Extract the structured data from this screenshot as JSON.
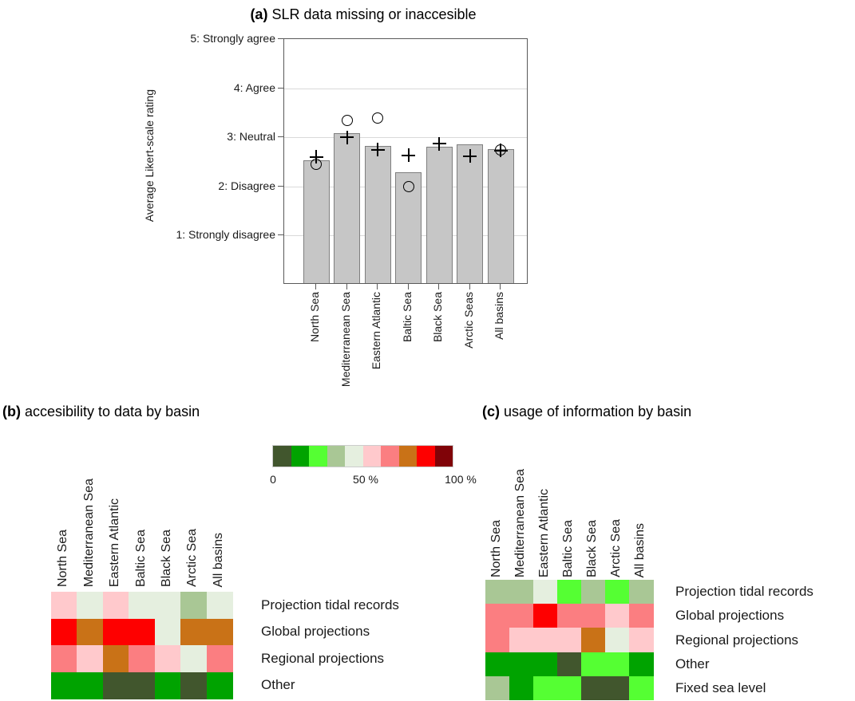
{
  "panel_a": {
    "title_prefix": "(a)",
    "title_text": " SLR data missing or inaccesible",
    "ylabel": "Average Likert-scale rating"
  },
  "panel_b": {
    "title_prefix": "(b)",
    "title_text": " accesibility to data by basin"
  },
  "panel_c": {
    "title_prefix": "(c)",
    "title_text": " usage of information by basin"
  },
  "colorbar": {
    "colors": [
      "#41562D",
      "#00A300",
      "#55FF33",
      "#A9C795",
      "#E5EFDF",
      "#FFC9CC",
      "#FB7E81",
      "#C97217",
      "#FE0000",
      "#800308"
    ],
    "tick_labels": [
      "0",
      "50 %",
      "100 %"
    ]
  },
  "chart_data": [
    {
      "type": "bar",
      "panel": "a",
      "title": "(a) SLR data missing or inaccesible",
      "ylabel": "Average Likert-scale rating",
      "ylim": [
        0,
        5
      ],
      "grid": true,
      "yticks": [
        {
          "value": 5,
          "label": "5: Strongly agree"
        },
        {
          "value": 4,
          "label": "4: Agree"
        },
        {
          "value": 3,
          "label": "3: Neutral"
        },
        {
          "value": 2,
          "label": "2: Disagree"
        },
        {
          "value": 1,
          "label": "1: Strongly disagree"
        }
      ],
      "categories": [
        "North Sea",
        "Mediterranean Sea",
        "Eastern Atlantic",
        "Baltic Sea",
        "Black Sea",
        "Arctic Seas",
        "All basins"
      ],
      "series": [
        {
          "name": "average rating (bar)",
          "marker": "bar",
          "values": [
            2.5,
            3.05,
            2.8,
            2.25,
            2.78,
            2.82,
            2.72
          ]
        },
        {
          "name": "plus marker",
          "marker": "plus",
          "values": [
            2.6,
            3.0,
            2.75,
            2.63,
            2.87,
            2.62,
            2.73
          ]
        },
        {
          "name": "circle marker",
          "marker": "circle",
          "values": [
            2.45,
            3.35,
            3.4,
            2.0,
            null,
            null,
            2.74
          ]
        }
      ],
      "bar_color": "#C6C6C6",
      "bar_border": "#808080"
    },
    {
      "type": "heatmap",
      "panel": "b",
      "title": "(b) accesibility to data by basin",
      "columns": [
        "North Sea",
        "Mediterranean Sea",
        "Eastern Atlantic",
        "Baltic Sea",
        "Black Sea",
        "Arctic Sea",
        "All basins"
      ],
      "rows": [
        "Projection tidal records",
        "Global projections",
        "Regional projections",
        "Other"
      ],
      "unit": "percent (decile midpoints read from 10-step green-to-red scale)",
      "values_pct": [
        [
          55,
          45,
          55,
          45,
          45,
          35,
          45
        ],
        [
          85,
          75,
          85,
          85,
          45,
          75,
          75
        ],
        [
          65,
          55,
          75,
          65,
          55,
          45,
          65
        ],
        [
          15,
          15,
          5,
          5,
          15,
          5,
          15
        ]
      ]
    },
    {
      "type": "heatmap",
      "panel": "c",
      "title": "(c) usage of information by basin",
      "columns": [
        "North Sea",
        "Mediterranean Sea",
        "Eastern Atlantic",
        "Baltic Sea",
        "Black Sea",
        "Arctic Sea",
        "All basins"
      ],
      "rows": [
        "Projection tidal records",
        "Global projections",
        "Regional projections",
        "Other",
        "Fixed sea level"
      ],
      "unit": "percent (decile midpoints read from 10-step green-to-red scale)",
      "values_pct": [
        [
          35,
          35,
          45,
          25,
          35,
          25,
          35
        ],
        [
          65,
          65,
          85,
          65,
          65,
          55,
          65
        ],
        [
          65,
          55,
          55,
          55,
          75,
          45,
          55
        ],
        [
          15,
          15,
          15,
          5,
          25,
          25,
          15
        ],
        [
          35,
          15,
          25,
          25,
          5,
          5,
          25
        ]
      ]
    }
  ]
}
